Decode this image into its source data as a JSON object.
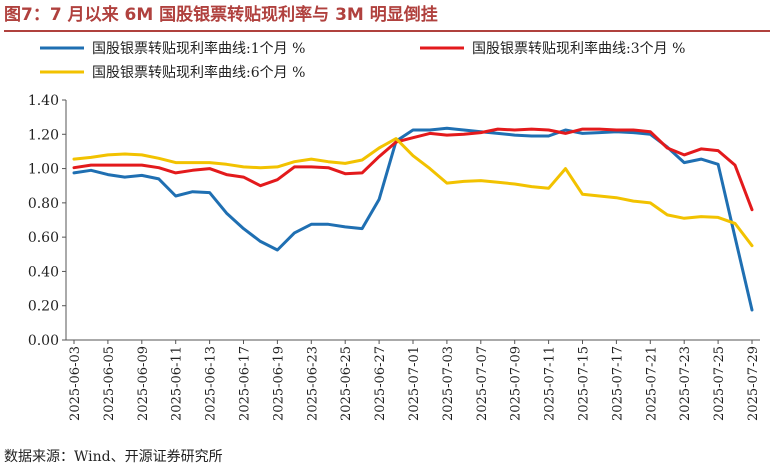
{
  "title": "图7：7 月以来 6M 国股银票转贴现利率与 3M 明显倒挂",
  "source": "数据来源：Wind、开源证券研究所",
  "chart_data": {
    "type": "line",
    "title": "图7：7 月以来 6M 国股银票转贴现利率与 3M 明显倒挂",
    "xlabel": "",
    "ylabel": "",
    "ylim": [
      0,
      1.4
    ],
    "yticks": [
      "0.00",
      "0.20",
      "0.40",
      "0.60",
      "0.80",
      "1.00",
      "1.20",
      "1.40"
    ],
    "grid": false,
    "legend_position": "top",
    "x": [
      "2025-06-03",
      "2025-06-04",
      "2025-06-05",
      "2025-06-06",
      "2025-06-09",
      "2025-06-10",
      "2025-06-11",
      "2025-06-12",
      "2025-06-13",
      "2025-06-16",
      "2025-06-17",
      "2025-06-18",
      "2025-06-19",
      "2025-06-20",
      "2025-06-23",
      "2025-06-24",
      "2025-06-25",
      "2025-06-26",
      "2025-06-27",
      "2025-06-30",
      "2025-07-01",
      "2025-07-02",
      "2025-07-03",
      "2025-07-04",
      "2025-07-07",
      "2025-07-08",
      "2025-07-09",
      "2025-07-10",
      "2025-07-11",
      "2025-07-14",
      "2025-07-15",
      "2025-07-16",
      "2025-07-17",
      "2025-07-18",
      "2025-07-21",
      "2025-07-22",
      "2025-07-23",
      "2025-07-24",
      "2025-07-25",
      "2025-07-28",
      "2025-07-29"
    ],
    "x_tick_labels": [
      "2025-06-03",
      "2025-06-05",
      "2025-06-09",
      "2025-06-11",
      "2025-06-13",
      "2025-06-17",
      "2025-06-19",
      "2025-06-23",
      "2025-06-25",
      "2025-06-27",
      "2025-07-01",
      "2025-07-03",
      "2025-07-07",
      "2025-07-09",
      "2025-07-11",
      "2025-07-15",
      "2025-07-17",
      "2025-07-21",
      "2025-07-23",
      "2025-07-25",
      "2025-07-29"
    ],
    "series": [
      {
        "name": "国股银票转贴现利率曲线:1个月 %",
        "color": "#1f6fb2",
        "values": [
          0.975,
          0.99,
          0.965,
          0.95,
          0.96,
          0.94,
          0.84,
          0.865,
          0.86,
          0.74,
          0.65,
          0.575,
          0.525,
          0.625,
          0.675,
          0.675,
          0.66,
          0.65,
          0.82,
          1.16,
          1.225,
          1.225,
          1.235,
          1.225,
          1.215,
          1.205,
          1.195,
          1.19,
          1.19,
          1.225,
          1.205,
          1.21,
          1.215,
          1.21,
          1.2,
          1.125,
          1.035,
          1.055,
          1.025,
          0.6,
          0.175
        ]
      },
      {
        "name": "国股银票转贴现利率曲线:3个月 %",
        "color": "#e31a1c",
        "values": [
          1.005,
          1.02,
          1.02,
          1.02,
          1.02,
          1.005,
          0.975,
          0.99,
          1.0,
          0.965,
          0.95,
          0.9,
          0.935,
          1.01,
          1.01,
          1.005,
          0.97,
          0.975,
          1.07,
          1.155,
          1.18,
          1.205,
          1.195,
          1.2,
          1.21,
          1.23,
          1.225,
          1.23,
          1.225,
          1.205,
          1.23,
          1.23,
          1.225,
          1.225,
          1.215,
          1.12,
          1.08,
          1.115,
          1.105,
          1.02,
          0.76
        ]
      },
      {
        "name": "国股银票转贴现利率曲线:6个月 %",
        "color": "#f2c200",
        "values": [
          1.055,
          1.065,
          1.08,
          1.085,
          1.08,
          1.06,
          1.035,
          1.035,
          1.035,
          1.025,
          1.01,
          1.005,
          1.01,
          1.04,
          1.055,
          1.04,
          1.03,
          1.05,
          1.12,
          1.175,
          1.075,
          1.0,
          0.915,
          0.925,
          0.93,
          0.92,
          0.91,
          0.895,
          0.885,
          1.0,
          0.85,
          0.84,
          0.83,
          0.81,
          0.8,
          0.73,
          0.71,
          0.72,
          0.715,
          0.68,
          0.55
        ]
      }
    ]
  }
}
